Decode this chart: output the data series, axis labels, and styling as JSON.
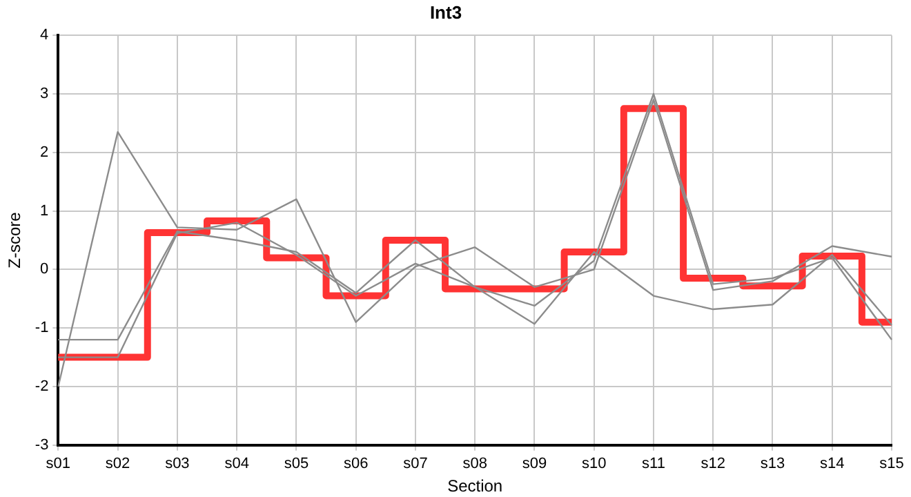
{
  "chart_data": {
    "type": "line",
    "title": "Int3",
    "xlabel": "Section",
    "ylabel": "Z-score",
    "categories": [
      "s01",
      "s02",
      "s03",
      "s04",
      "s05",
      "s06",
      "s07",
      "s08",
      "s09",
      "s10",
      "s11",
      "s12",
      "s13",
      "s14",
      "s15"
    ],
    "ylim": [
      -3,
      4
    ],
    "yticks": [
      -3,
      -2,
      -1,
      0,
      1,
      2,
      3,
      4
    ],
    "grid": true,
    "legend": false,
    "marker": "none",
    "series": [
      {
        "type": "line",
        "color": "#8c8c8c",
        "values": [
          -2.0,
          2.35,
          0.72,
          0.68,
          1.2,
          -0.9,
          0.05,
          0.38,
          -0.3,
          0.0,
          2.9,
          -0.35,
          -0.2,
          0.4,
          0.22
        ]
      },
      {
        "type": "line",
        "color": "#8c8c8c",
        "values": [
          -1.2,
          -1.2,
          0.65,
          0.5,
          0.3,
          -0.4,
          0.5,
          -0.3,
          -0.62,
          0.15,
          3.0,
          -0.25,
          -0.15,
          0.2,
          -1.2
        ]
      },
      {
        "type": "line",
        "color": "#8c8c8c",
        "values": [
          -1.5,
          -1.5,
          0.62,
          0.8,
          0.25,
          -0.45,
          0.1,
          -0.3,
          -0.93,
          0.3,
          -0.45,
          -0.68,
          -0.6,
          0.25,
          -0.95
        ]
      },
      {
        "type": "step",
        "color": "#ff3333",
        "values": [
          -1.5,
          -1.5,
          0.63,
          0.83,
          0.2,
          -0.45,
          0.5,
          -0.33,
          -0.33,
          0.3,
          2.75,
          -0.15,
          -0.28,
          0.23,
          -0.9
        ]
      }
    ]
  }
}
